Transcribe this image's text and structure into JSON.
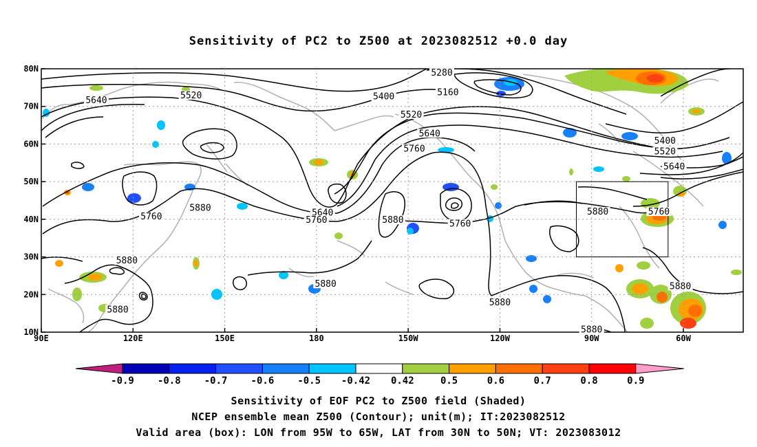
{
  "title": "Sensitivity of PC2 to Z500 at 2023082512 +0.0 day",
  "lon_labels": [
    "90E",
    "120E",
    "150E",
    "180",
    "150W",
    "120W",
    "90W",
    "60W"
  ],
  "lat_labels": [
    "80N",
    "70N",
    "60N",
    "50N",
    "40N",
    "30N",
    "20N",
    "10N"
  ],
  "contour_labels": [
    {
      "text": "5280",
      "lon": -139,
      "lat": 78.5
    },
    {
      "text": "5160",
      "lon": -137,
      "lat": 73.3
    },
    {
      "text": "5400",
      "lon": -158,
      "lat": 72.2
    },
    {
      "text": "5520",
      "lon": -149,
      "lat": 67.4
    },
    {
      "text": "5640",
      "lon": -143,
      "lat": 62.4
    },
    {
      "text": "5760",
      "lon": -148,
      "lat": 58.3
    },
    {
      "text": "5520",
      "lon": 139,
      "lat": 72.5
    },
    {
      "text": "5640",
      "lon": 108,
      "lat": 71.2
    },
    {
      "text": "5880",
      "lon": 142,
      "lat": 42.6
    },
    {
      "text": "5760",
      "lon": 126,
      "lat": 40.3
    },
    {
      "text": "5640",
      "lon": -178,
      "lat": 41.3
    },
    {
      "text": "5760",
      "lon": -180,
      "lat": 39.4
    },
    {
      "text": "5880",
      "lon": -155,
      "lat": 39.4
    },
    {
      "text": "5760",
      "lon": -133,
      "lat": 38.4
    },
    {
      "text": "5880",
      "lon": -88,
      "lat": 41.6
    },
    {
      "text": "5760",
      "lon": -68,
      "lat": 41.6
    },
    {
      "text": "5400",
      "lon": -66,
      "lat": 60.4
    },
    {
      "text": "5520",
      "lon": -66,
      "lat": 57.6
    },
    {
      "text": "5640",
      "lon": -63,
      "lat": 53.6
    },
    {
      "text": "5880",
      "lon": 118,
      "lat": 28.6
    },
    {
      "text": "5880",
      "lon": 115,
      "lat": 15.6
    },
    {
      "text": "5880",
      "lon": -177,
      "lat": 22.4
    },
    {
      "text": "5880",
      "lon": -120,
      "lat": 17.5
    },
    {
      "text": "5880",
      "lon": -61,
      "lat": 21.8
    },
    {
      "text": "5880",
      "lon": -90,
      "lat": 10.3
    }
  ],
  "colorbar": {
    "labels": [
      "-0.9",
      "-0.8",
      "-0.7",
      "-0.6",
      "-0.5",
      "-0.42",
      "0.42",
      "0.5",
      "0.6",
      "0.7",
      "0.8",
      "0.9"
    ],
    "colors": [
      "#0000b4",
      "#0820f0",
      "#2050ff",
      "#1880ff",
      "#00c4ff",
      "#ffffff",
      "#a0d040",
      "#ffa000",
      "#ff7000",
      "#ff4010",
      "#ff0000"
    ],
    "low_color": "#c0207c",
    "high_color": "#ff9ec8"
  },
  "captions": {
    "line1": "Sensitivity of EOF PC2 to Z500 field (Shaded)",
    "line2": "NCEP ensemble mean Z500 (Contour); unit(m); IT:2023082512",
    "line3": "Valid area (box): LON from 95W to 65W, LAT from 30N to 50N; VT: 2023083012"
  },
  "valid_box": {
    "lon_min": -95,
    "lon_max": -65,
    "lat_min": 30,
    "lat_max": 50
  }
}
